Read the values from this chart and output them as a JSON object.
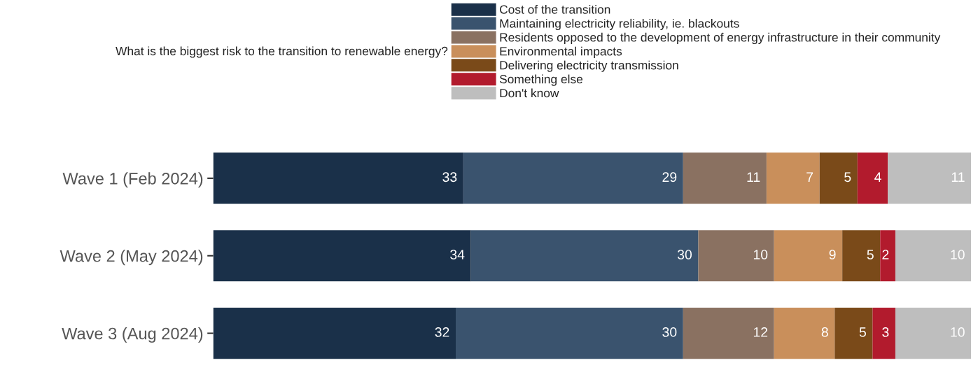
{
  "chart_data": {
    "type": "bar",
    "orientation": "horizontal",
    "stacked": true,
    "title": "What is the biggest risk to the transition to renewable energy?",
    "categories": [
      "Wave 1 (Feb 2024)",
      "Wave 2 (May 2024)",
      "Wave 3 (Aug 2024)"
    ],
    "series": [
      {
        "name": "Cost of the transition",
        "color": "#1a3049",
        "values": [
          33,
          34,
          32
        ]
      },
      {
        "name": "Maintaining electricity reliability, ie. blackouts",
        "color": "#3a536e",
        "values": [
          29,
          30,
          30
        ]
      },
      {
        "name": "Residents opposed to the development of energy infrastructure in their community",
        "color": "#8a7161",
        "values": [
          11,
          10,
          12
        ]
      },
      {
        "name": "Environmental impacts",
        "color": "#c98f5b",
        "values": [
          7,
          9,
          8
        ]
      },
      {
        "name": "Delivering electricity transmission",
        "color": "#7a4a19",
        "values": [
          5,
          5,
          5
        ]
      },
      {
        "name": "Something else",
        "color": "#b21b2d",
        "values": [
          4,
          2,
          3
        ]
      },
      {
        "name": "Don't know",
        "color": "#bebebe",
        "values": [
          11,
          10,
          10
        ]
      }
    ],
    "xlim": [
      0,
      100
    ],
    "tick_labels": "y",
    "data_labels": true,
    "legend": "top",
    "grid": false
  }
}
